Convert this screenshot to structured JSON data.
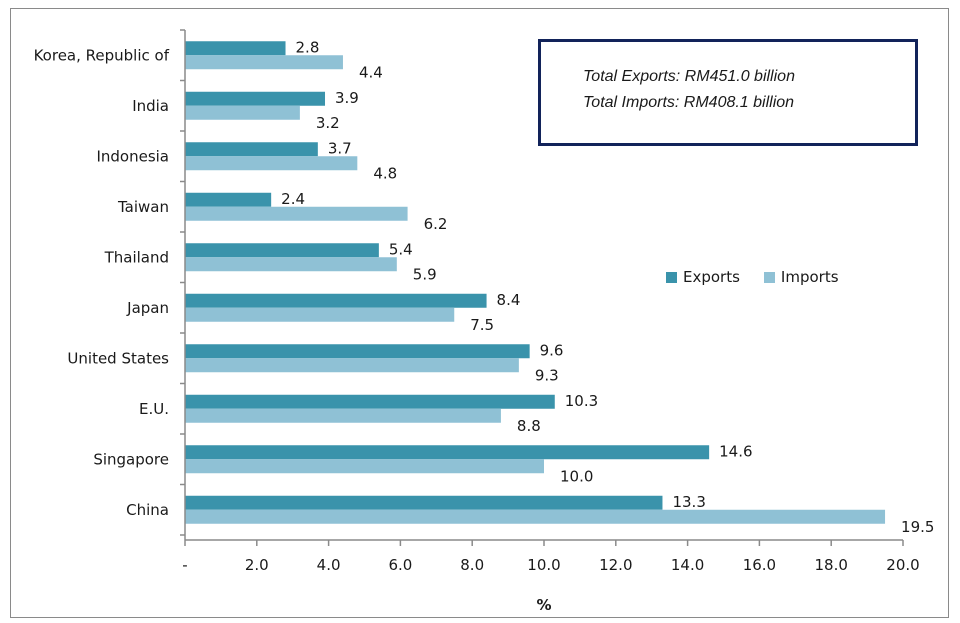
{
  "chart_data": {
    "type": "bar",
    "orientation": "horizontal",
    "title": "",
    "xlabel": "%",
    "ylabel": "",
    "xlim": [
      0,
      20
    ],
    "x_ticks": [
      0,
      2,
      4,
      6,
      8,
      10,
      12,
      14,
      16,
      18,
      20
    ],
    "x_tick_labels": [
      "-",
      "2.0",
      "4.0",
      "6.0",
      "8.0",
      "10.0",
      "12.0",
      "14.0",
      "16.0",
      "18.0",
      "20.0"
    ],
    "grid": false,
    "legend_position": "right-middle",
    "categories": [
      "Korea, Republic of",
      "India",
      "Indonesia",
      "Taiwan",
      "Thailand",
      "Japan",
      "United States",
      "E.U.",
      "Singapore",
      "China"
    ],
    "series": [
      {
        "name": "Exports",
        "color": "#3a93ab",
        "values": [
          2.8,
          3.9,
          3.7,
          2.4,
          5.4,
          8.4,
          9.6,
          10.3,
          14.6,
          13.3
        ],
        "labels": [
          "2.8",
          "3.9",
          "3.7",
          "2.4",
          "5.4",
          "8.4",
          "9.6",
          "10.3",
          "14.6",
          "13.3"
        ]
      },
      {
        "name": "Imports",
        "color": "#8fc1d5",
        "values": [
          4.4,
          3.2,
          4.8,
          6.2,
          5.9,
          7.5,
          9.3,
          8.8,
          10.0,
          19.5
        ],
        "labels": [
          "4.4",
          "3.2",
          "4.8",
          "6.2",
          "5.9",
          "7.5",
          "9.3",
          "8.8",
          "10.0",
          "19.5"
        ]
      }
    ],
    "annotations": {
      "total_exports": "Total Exports: RM451.0 billion",
      "total_imports": "Total Imports: RM408.1 billion"
    }
  }
}
